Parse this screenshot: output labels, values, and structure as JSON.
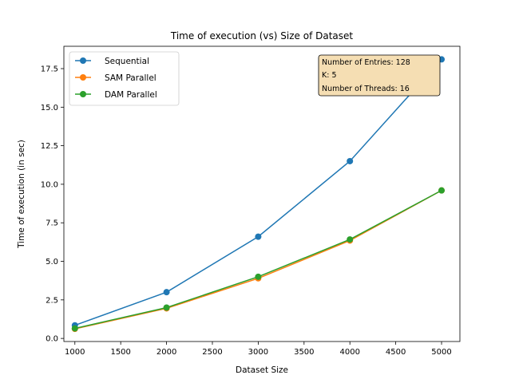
{
  "chart_data": {
    "type": "line",
    "title": "Time of execution (vs) Size of Dataset",
    "xlabel": "Dataset Size",
    "ylabel": "Time of execution (in sec)",
    "x": [
      1000,
      2000,
      3000,
      4000,
      5000
    ],
    "xlim": [
      880,
      5200
    ],
    "ylim": [
      -0.2,
      18.95
    ],
    "xticks": [
      1000,
      1500,
      2000,
      2500,
      3000,
      3500,
      4000,
      4500,
      5000
    ],
    "yticks": [
      0.0,
      2.5,
      5.0,
      7.5,
      10.0,
      12.5,
      15.0,
      17.5
    ],
    "ytick_labels": [
      "0.0",
      "2.5",
      "5.0",
      "7.5",
      "10.0",
      "12.5",
      "15.0",
      "17.5"
    ],
    "grid": false,
    "legend_position": "top-left",
    "series": [
      {
        "name": "Sequential",
        "color": "#1f77b4",
        "values": [
          0.85,
          3.0,
          6.6,
          11.5,
          18.1
        ]
      },
      {
        "name": "SAM Parallel",
        "color": "#ff7f0e",
        "values": [
          0.62,
          1.95,
          3.9,
          6.35,
          9.6
        ]
      },
      {
        "name": "DAM Parallel",
        "color": "#2ca02c",
        "values": [
          0.65,
          2.0,
          4.0,
          6.42,
          9.6
        ]
      }
    ],
    "annotation": {
      "lines": [
        "Number of Entries: 128",
        "K: 5",
        "Number of Threads: 16"
      ],
      "background": "#f5deb3"
    }
  }
}
